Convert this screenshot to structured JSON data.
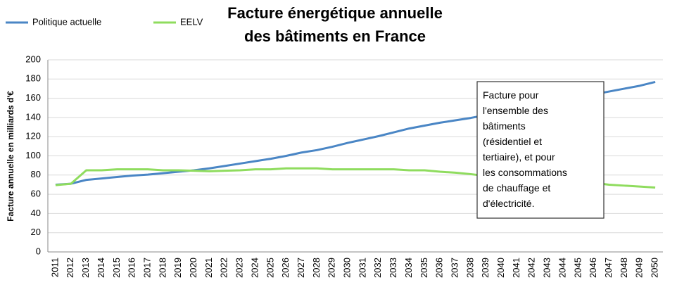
{
  "chart_data": {
    "type": "line",
    "title": [
      "Facture énergétique annuelle",
      "des bâtiments en France"
    ],
    "y_label": "Facture annuelle en milliards d'€",
    "categories": [
      "2011",
      "2012",
      "2013",
      "2014",
      "2015",
      "2016",
      "2017",
      "2018",
      "2019",
      "2020",
      "2021",
      "2022",
      "2023",
      "2024",
      "2025",
      "2026",
      "2027",
      "2028",
      "2029",
      "2030",
      "2031",
      "2032",
      "2033",
      "2034",
      "2035",
      "2036",
      "2037",
      "2038",
      "2039",
      "2040",
      "2041",
      "2042",
      "2043",
      "2044",
      "2045",
      "2046",
      "2047",
      "2048",
      "2049",
      "2050"
    ],
    "series": [
      {
        "name": "Politique actuelle",
        "color": "#4a86c5",
        "values": [
          70,
          71,
          75,
          76.5,
          78,
          79.5,
          80.5,
          82,
          83.5,
          85,
          87,
          89.5,
          92,
          94.5,
          97,
          100,
          103.5,
          106,
          109.5,
          113.5,
          117,
          120.5,
          124.5,
          128.5,
          131.5,
          134.5,
          137,
          139.5,
          142.5,
          145,
          148,
          151,
          154,
          157,
          160.5,
          164,
          167,
          170,
          173,
          177
        ]
      },
      {
        "name": "EELV",
        "color": "#8fdc5e",
        "values": [
          69.5,
          71,
          85,
          85,
          86,
          86,
          86,
          85,
          85,
          84.5,
          84,
          84.5,
          85,
          86,
          86,
          87,
          87,
          87,
          86,
          86,
          86,
          86,
          86,
          85,
          85,
          83.5,
          82.5,
          81,
          79,
          78,
          77,
          76,
          75,
          74,
          73,
          72,
          70,
          69,
          68,
          67
        ]
      }
    ],
    "ylim": [
      0,
      200
    ],
    "yticks": [
      0,
      20,
      40,
      60,
      80,
      100,
      120,
      140,
      160,
      180,
      200
    ],
    "grid": true,
    "annotation": [
      "Facture pour",
      "l'ensemble des",
      "bâtiments",
      "(résidentiel et",
      "tertiaire), et pour",
      " les consommations",
      "de chauffage et",
      "d'électricité."
    ]
  }
}
